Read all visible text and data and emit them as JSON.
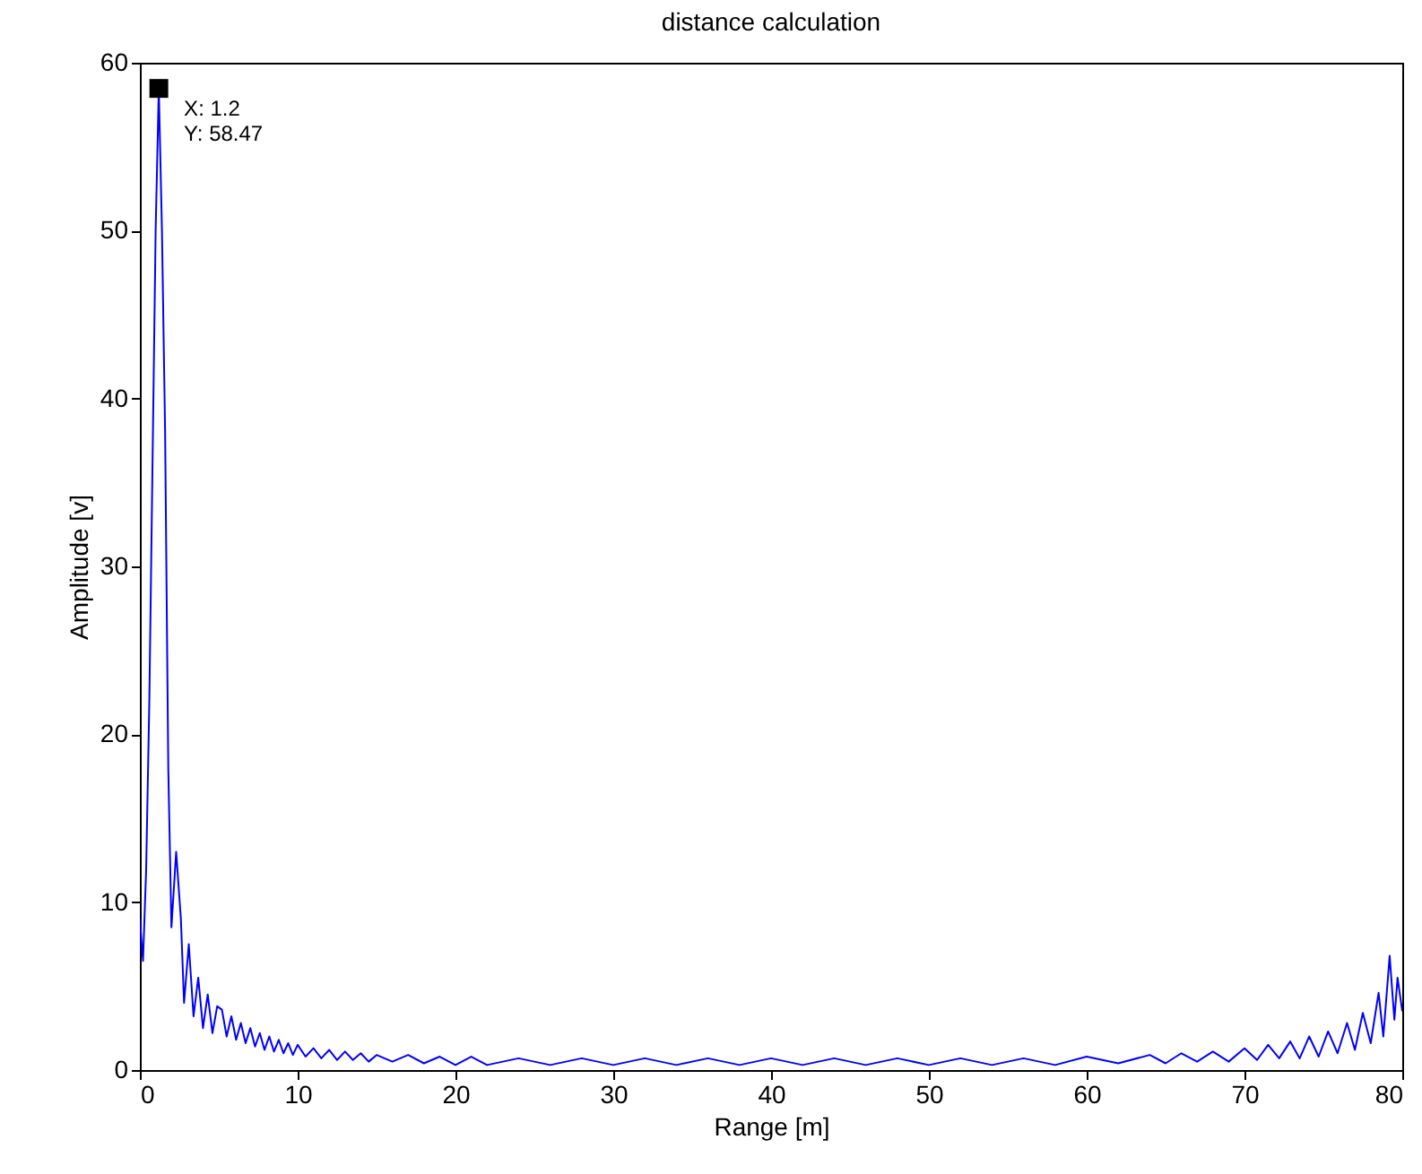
{
  "chart_data": {
    "type": "line",
    "title": "distance  calculation",
    "xlabel": "Range [m]",
    "ylabel": "Amplitude  [v]",
    "xlim": [
      0,
      80
    ],
    "xticks": [
      0,
      10,
      20,
      30,
      40,
      50,
      60,
      70,
      80
    ],
    "ylim": [
      0,
      60
    ],
    "yticks": [
      0,
      10,
      20,
      30,
      40,
      50,
      60
    ],
    "grid": false,
    "line_style": "solid",
    "annotations": [
      {
        "text": "X: 1.2\nY: 58.47",
        "x": 1.2,
        "y": 58.47
      }
    ],
    "x": [
      0,
      0.2,
      0.4,
      0.6,
      0.8,
      1.0,
      1.2,
      1.4,
      1.6,
      1.8,
      2.0,
      2.3,
      2.6,
      2.8,
      3.1,
      3.4,
      3.7,
      4.0,
      4.3,
      4.6,
      4.9,
      5.2,
      5.5,
      5.8,
      6.1,
      6.4,
      6.7,
      7.0,
      7.3,
      7.6,
      7.9,
      8.2,
      8.5,
      8.8,
      9.1,
      9.4,
      9.7,
      10.0,
      10.5,
      11,
      11.5,
      12,
      12.5,
      13,
      13.5,
      14,
      14.5,
      15,
      16,
      17,
      18,
      19,
      20,
      21,
      22,
      24,
      26,
      28,
      30,
      32,
      34,
      36,
      38,
      40,
      42,
      44,
      46,
      48,
      50,
      52,
      54,
      56,
      58,
      60,
      62,
      64,
      65,
      66,
      67,
      68,
      69,
      70,
      70.8,
      71.5,
      72.2,
      72.9,
      73.5,
      74.1,
      74.7,
      75.3,
      75.9,
      76.5,
      77,
      77.5,
      78,
      78.5,
      78.8,
      79.2,
      79.5,
      79.7,
      80
    ],
    "series": [
      {
        "color": "#0000ff",
        "values": [
          9,
          6.5,
          12,
          22,
          36,
          50,
          58.47,
          50,
          38,
          18,
          8.5,
          13,
          9,
          4,
          7.5,
          3.2,
          5.5,
          2.5,
          4.5,
          2.2,
          3.8,
          3.6,
          2.0,
          3.2,
          1.8,
          2.8,
          1.6,
          2.5,
          1.4,
          2.2,
          1.2,
          2.0,
          1.1,
          1.8,
          1.0,
          1.6,
          0.9,
          1.5,
          0.8,
          1.3,
          0.7,
          1.2,
          0.6,
          1.1,
          0.6,
          1.0,
          0.5,
          0.9,
          0.5,
          0.9,
          0.4,
          0.8,
          0.3,
          0.8,
          0.3,
          0.7,
          0.3,
          0.7,
          0.3,
          0.7,
          0.3,
          0.7,
          0.3,
          0.7,
          0.3,
          0.7,
          0.3,
          0.7,
          0.3,
          0.7,
          0.3,
          0.7,
          0.3,
          0.8,
          0.4,
          0.9,
          0.4,
          1.0,
          0.5,
          1.1,
          0.5,
          1.3,
          0.6,
          1.5,
          0.7,
          1.7,
          0.7,
          2.0,
          0.8,
          2.3,
          1.0,
          2.8,
          1.2,
          3.4,
          1.6,
          4.6,
          2.0,
          6.8,
          3.0,
          5.5,
          3.5
        ]
      }
    ]
  }
}
